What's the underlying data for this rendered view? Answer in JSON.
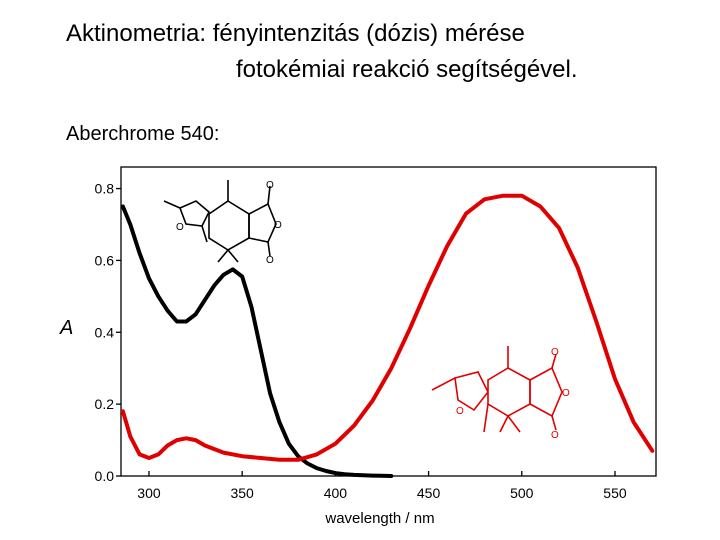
{
  "slide": {
    "title_line1": "Aktinometria: fényintenzitás (dózis) mérése",
    "title_line2": "fotokémiai reakció segítségével.",
    "subtitle": "Aberchrome 540:"
  },
  "chart_data": {
    "type": "line",
    "title": "",
    "xlabel": "wavelength / nm",
    "ylabel": "A",
    "xlim": [
      285,
      572
    ],
    "ylim": [
      0,
      0.86
    ],
    "xticks": [
      300,
      350,
      400,
      450,
      500,
      550
    ],
    "xtick_labels": [
      "300",
      "350",
      "400",
      "450",
      "500",
      "550"
    ],
    "yticks": [
      0.0,
      0.2,
      0.4,
      0.6,
      0.8
    ],
    "ytick_labels": [
      "0.0",
      "0.2",
      "0.4",
      "0.6",
      "0.8"
    ],
    "grid": false,
    "legend": "none",
    "series": [
      {
        "color": "#000000",
        "x": [
          286,
          290,
          295,
          300,
          305,
          310,
          315,
          320,
          325,
          330,
          335,
          340,
          345,
          350,
          355,
          360,
          365,
          370,
          375,
          380,
          385,
          390,
          395,
          400,
          405,
          410,
          420,
          430
        ],
        "y": [
          0.75,
          0.7,
          0.62,
          0.55,
          0.5,
          0.46,
          0.43,
          0.43,
          0.45,
          0.49,
          0.53,
          0.56,
          0.575,
          0.555,
          0.47,
          0.35,
          0.23,
          0.15,
          0.09,
          0.055,
          0.035,
          0.022,
          0.014,
          0.008,
          0.005,
          0.003,
          0.001,
          0.0
        ]
      },
      {
        "color": "#e00000",
        "x": [
          286,
          290,
          295,
          300,
          305,
          310,
          315,
          320,
          325,
          330,
          340,
          350,
          360,
          370,
          380,
          390,
          400,
          410,
          420,
          430,
          440,
          450,
          460,
          470,
          480,
          490,
          500,
          510,
          520,
          530,
          540,
          550,
          560,
          570
        ],
        "y": [
          0.18,
          0.11,
          0.06,
          0.05,
          0.06,
          0.085,
          0.1,
          0.105,
          0.1,
          0.085,
          0.065,
          0.055,
          0.05,
          0.045,
          0.045,
          0.06,
          0.09,
          0.14,
          0.21,
          0.3,
          0.41,
          0.53,
          0.64,
          0.73,
          0.77,
          0.78,
          0.78,
          0.75,
          0.69,
          0.58,
          0.43,
          0.27,
          0.15,
          0.07
        ]
      }
    ]
  }
}
